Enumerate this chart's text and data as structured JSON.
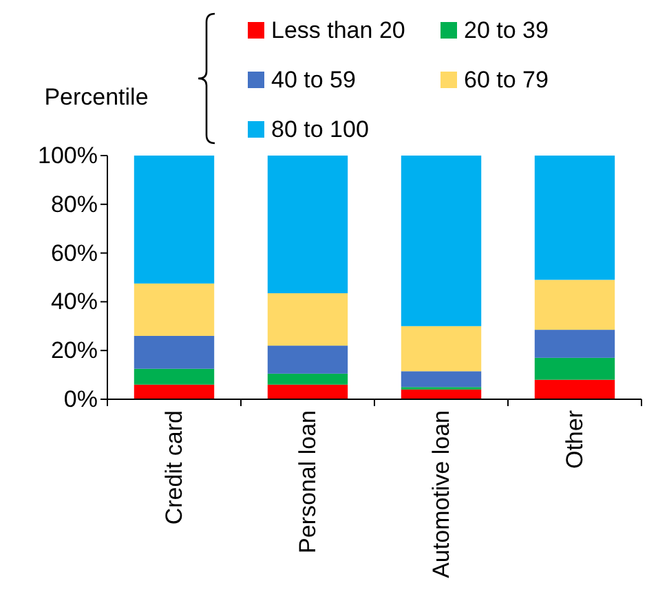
{
  "chart_data": {
    "type": "bar",
    "stacked": true,
    "legend_title": "Percentile",
    "legend": "top",
    "categories": [
      "Credit card",
      "Personal loan",
      "Automotive loan",
      "Other"
    ],
    "series": [
      {
        "name": "Less than 20",
        "color": "#ff0000",
        "values": [
          6,
          6,
          4,
          8
        ]
      },
      {
        "name": "20 to 39",
        "color": "#00b050",
        "values": [
          6.5,
          4.5,
          1,
          9
        ]
      },
      {
        "name": "40 to 59",
        "color": "#4472c4",
        "values": [
          13.5,
          11.5,
          6.5,
          11.5
        ]
      },
      {
        "name": "60 to 79",
        "color": "#ffd966",
        "values": [
          21.5,
          21.5,
          18.5,
          20.5
        ]
      },
      {
        "name": "80 to 100",
        "color": "#00b0f0",
        "values": [
          52.5,
          56.5,
          70,
          51
        ]
      }
    ],
    "ylim": [
      0,
      100
    ],
    "yticks": [
      {
        "value": 0,
        "label": "0%"
      },
      {
        "value": 20,
        "label": "20%"
      },
      {
        "value": 40,
        "label": "40%"
      },
      {
        "value": 60,
        "label": "60%"
      },
      {
        "value": 80,
        "label": "80%"
      },
      {
        "value": 100,
        "label": "100%"
      }
    ],
    "grid": false
  }
}
